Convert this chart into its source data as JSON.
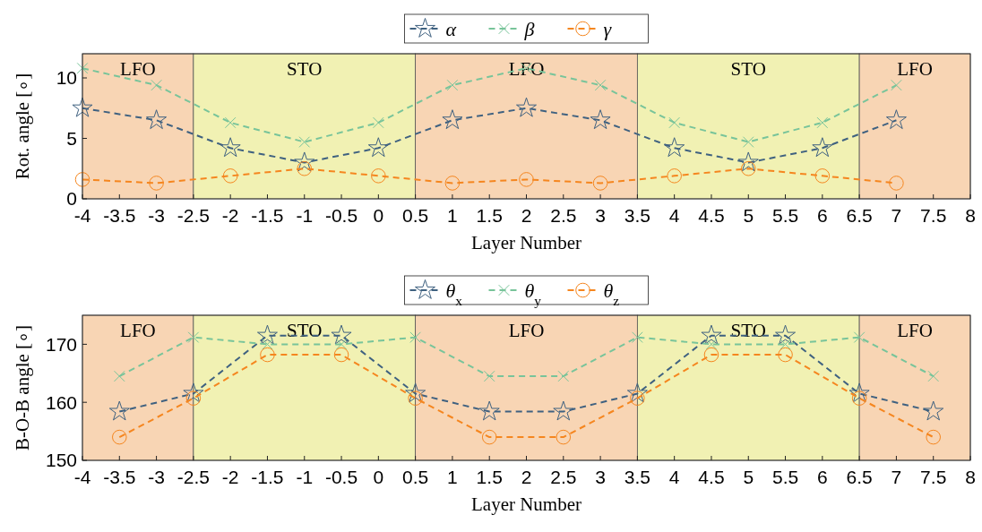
{
  "chart_data": [
    {
      "type": "line",
      "xlabel": "Layer Number",
      "ylabel": "Rot. angle [∘]",
      "x": [
        -4,
        -3,
        -2,
        -1,
        0,
        1,
        2,
        3,
        4,
        5,
        6,
        7
      ],
      "series": [
        {
          "name": "α",
          "color": "#3f6180",
          "marker": "star",
          "values": [
            7.5,
            6.5,
            4.2,
            3.0,
            4.2,
            6.5,
            7.5,
            6.5,
            4.2,
            3.0,
            4.2,
            6.5
          ]
        },
        {
          "name": "β",
          "color": "#78c49a",
          "marker": "cross",
          "values": [
            10.8,
            9.4,
            6.3,
            4.7,
            6.3,
            9.4,
            10.8,
            9.4,
            6.3,
            4.7,
            6.3,
            9.4
          ]
        },
        {
          "name": "γ",
          "color": "#f5861f",
          "marker": "circle",
          "values": [
            1.6,
            1.3,
            1.9,
            2.5,
            1.9,
            1.3,
            1.6,
            1.3,
            1.9,
            2.5,
            1.9,
            1.3
          ]
        }
      ],
      "xlim": [
        -4,
        8
      ],
      "xticks": [
        -4,
        -3.5,
        -3,
        -2.5,
        -2,
        -1.5,
        -1,
        -0.5,
        0,
        0.5,
        1,
        1.5,
        2,
        2.5,
        3,
        3.5,
        4,
        4.5,
        5,
        5.5,
        6,
        6.5,
        7,
        7.5,
        8
      ],
      "ylim": [
        0,
        12
      ],
      "yticks": [
        0,
        5,
        10
      ],
      "bands": [
        {
          "axis": "x",
          "from": -4,
          "to": -2.5,
          "label": "LFO",
          "color": "#f8d5b4"
        },
        {
          "axis": "x",
          "from": -2.5,
          "to": 0.5,
          "label": "STO",
          "color": "#f1f1b3"
        },
        {
          "axis": "x",
          "from": 0.5,
          "to": 3.5,
          "label": "LFO",
          "color": "#f8d5b4"
        },
        {
          "axis": "x",
          "from": 3.5,
          "to": 6.5,
          "label": "STO",
          "color": "#f1f1b3"
        },
        {
          "axis": "x",
          "from": 6.5,
          "to": 8,
          "label": "LFO",
          "color": "#f8d5b4"
        }
      ],
      "legend": "top",
      "line_style": "dashed",
      "grid": false
    },
    {
      "type": "line",
      "xlabel": "Layer Number",
      "ylabel": "B-O-B angle [∘]",
      "x": [
        -3.5,
        -2.5,
        -1.5,
        -0.5,
        0.5,
        1.5,
        2.5,
        3.5,
        4.5,
        5.5,
        6.5,
        7.5
      ],
      "series": [
        {
          "name": "θ$_{x}$",
          "color": "#3f6180",
          "marker": "star",
          "values": [
            158.4,
            161.5,
            171.5,
            171.5,
            161.5,
            158.4,
            158.4,
            161.5,
            171.5,
            171.5,
            161.5,
            158.4
          ]
        },
        {
          "name": "θ$_{y}$",
          "color": "#78c49a",
          "marker": "cross",
          "values": [
            164.5,
            171.2,
            170,
            170,
            171.2,
            164.5,
            164.5,
            171.2,
            170,
            170,
            171.2,
            164.5
          ]
        },
        {
          "name": "θ$_{z}$",
          "color": "#f5861f",
          "marker": "circle",
          "values": [
            154,
            160.7,
            168.2,
            168.2,
            160.7,
            154,
            154,
            160.7,
            168.2,
            168.2,
            160.7,
            154
          ]
        }
      ],
      "xlim": [
        -4,
        8
      ],
      "xticks": [
        -4,
        -3.5,
        -3,
        -2.5,
        -2,
        -1.5,
        -1,
        -0.5,
        0,
        0.5,
        1,
        1.5,
        2,
        2.5,
        3,
        3.5,
        4,
        4.5,
        5,
        5.5,
        6,
        6.5,
        7,
        7.5,
        8
      ],
      "ylim": [
        150,
        175
      ],
      "yticks": [
        150,
        160,
        170
      ],
      "bands": [
        {
          "axis": "x",
          "from": -4,
          "to": -2.5,
          "label": "LFO",
          "color": "#f8d5b4"
        },
        {
          "axis": "x",
          "from": -2.5,
          "to": 0.5,
          "label": "STO",
          "color": "#f1f1b3"
        },
        {
          "axis": "x",
          "from": 0.5,
          "to": 3.5,
          "label": "LFO",
          "color": "#f8d5b4"
        },
        {
          "axis": "x",
          "from": 3.5,
          "to": 6.5,
          "label": "STO",
          "color": "#f1f1b3"
        },
        {
          "axis": "x",
          "from": 6.5,
          "to": 8,
          "label": "LFO",
          "color": "#f8d5b4"
        }
      ],
      "legend": "top",
      "line_style": "dashed",
      "grid": false
    }
  ]
}
